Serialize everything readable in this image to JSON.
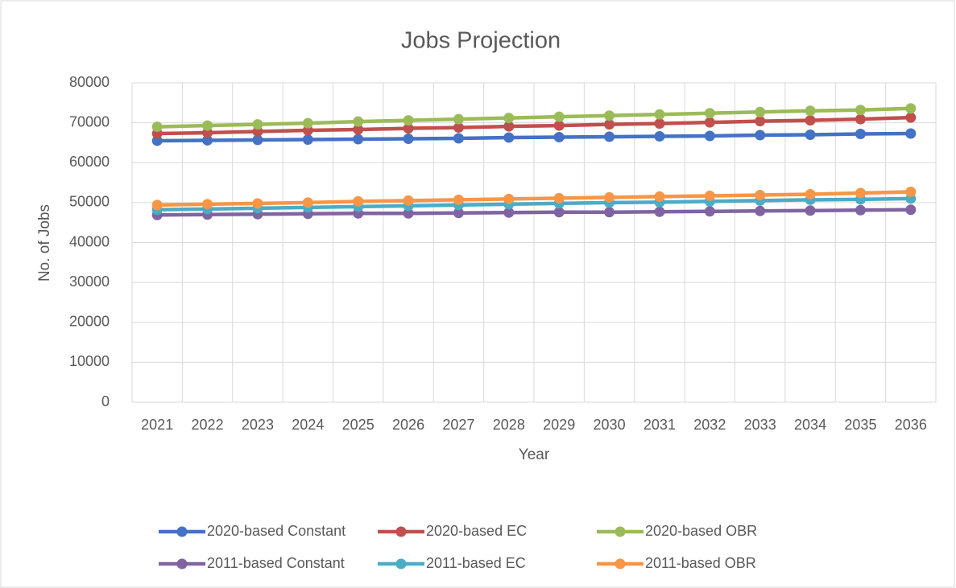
{
  "chart_data": {
    "type": "line",
    "title": "Jobs Projection",
    "x_label": "Year",
    "y_label": "No. of Jobs",
    "categories": [
      "2021",
      "2022",
      "2023",
      "2024",
      "2025",
      "2026",
      "2027",
      "2028",
      "2029",
      "2030",
      "2031",
      "2032",
      "2033",
      "2034",
      "2035",
      "2036"
    ],
    "series": [
      {
        "name": "2020-based Constant",
        "color": "#4472c4",
        "values": [
          65500,
          65600,
          65700,
          65800,
          65900,
          66000,
          66100,
          66300,
          66400,
          66500,
          66600,
          66700,
          66900,
          67000,
          67200,
          67300
        ]
      },
      {
        "name": "2020-based EC",
        "color": "#c0504d",
        "values": [
          67300,
          67500,
          67800,
          68100,
          68300,
          68600,
          68800,
          69100,
          69300,
          69600,
          69800,
          70100,
          70400,
          70600,
          70900,
          71300
        ]
      },
      {
        "name": "2020-based OBR",
        "color": "#9bbb59",
        "values": [
          69000,
          69300,
          69600,
          69900,
          70300,
          70600,
          70900,
          71200,
          71500,
          71800,
          72100,
          72400,
          72700,
          73000,
          73200,
          73600
        ]
      },
      {
        "name": "2011-based Constant",
        "color": "#8064a2",
        "values": [
          46900,
          47000,
          47100,
          47200,
          47300,
          47300,
          47400,
          47500,
          47600,
          47600,
          47700,
          47800,
          47900,
          48000,
          48100,
          48200
        ]
      },
      {
        "name": "2011-based EC",
        "color": "#4bacc6",
        "values": [
          48200,
          48400,
          48600,
          48800,
          49000,
          49200,
          49400,
          49600,
          49800,
          50000,
          50100,
          50300,
          50500,
          50700,
          50800,
          51000
        ]
      },
      {
        "name": "2011-based OBR",
        "color": "#f79646",
        "values": [
          49400,
          49600,
          49800,
          50000,
          50300,
          50500,
          50700,
          50900,
          51100,
          51300,
          51500,
          51700,
          51900,
          52100,
          52400,
          52700
        ]
      }
    ],
    "ylim": [
      0,
      80000
    ],
    "yticks": [
      0,
      10000,
      20000,
      30000,
      40000,
      50000,
      60000,
      70000,
      80000
    ],
    "grid": true,
    "legend": "bottom"
  }
}
